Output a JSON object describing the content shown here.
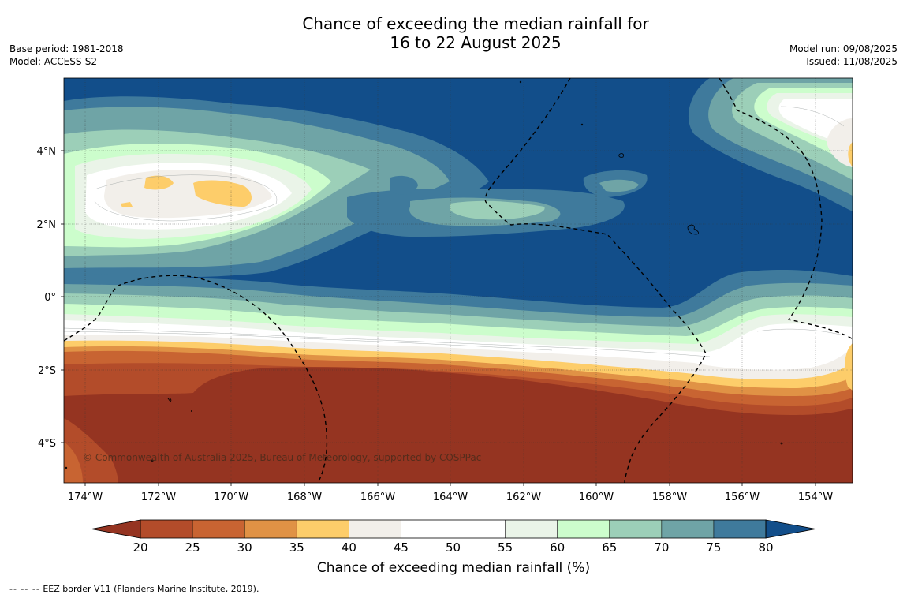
{
  "title_line1": "Chance of exceeding the median rainfall for",
  "title_line2": "16 to 22 August 2025",
  "base_period": "Base period: 1981-2018",
  "model": "Model: ACCESS-S2",
  "model_run": "Model run: 09/08/2025",
  "issued": "Issued: 11/08/2025",
  "copyright": "© Commonwealth of Australia 2025, Bureau of Meteorology, supported by COSPPac",
  "lon_ticks": [
    "174°W",
    "172°W",
    "170°W",
    "168°W",
    "166°W",
    "164°W",
    "162°W",
    "160°W",
    "158°W",
    "156°W",
    "154°W"
  ],
  "lat_ticks": [
    "4°N",
    "2°N",
    "0°",
    "2°S",
    "4°S"
  ],
  "colorbar": {
    "title": "Chance of exceeding median rainfall (%)",
    "ticks": [
      "20",
      "25",
      "30",
      "35",
      "40",
      "45",
      "50",
      "55",
      "60",
      "65",
      "70",
      "75",
      "80"
    ],
    "colors": [
      "#953421",
      "#b34c2a",
      "#c86432",
      "#e09245",
      "#fdcd6a",
      "#f2efea",
      "#ffffff",
      "#ffffff",
      "#eaf4e8",
      "#ccfdcc",
      "#9ccfb8",
      "#6fa4a6",
      "#3f7a9c",
      "#124e8a"
    ]
  },
  "footer": {
    "symbol": "-- -- --",
    "text": "EEZ border V11 (Flanders Marine Institute, 2019)."
  }
}
